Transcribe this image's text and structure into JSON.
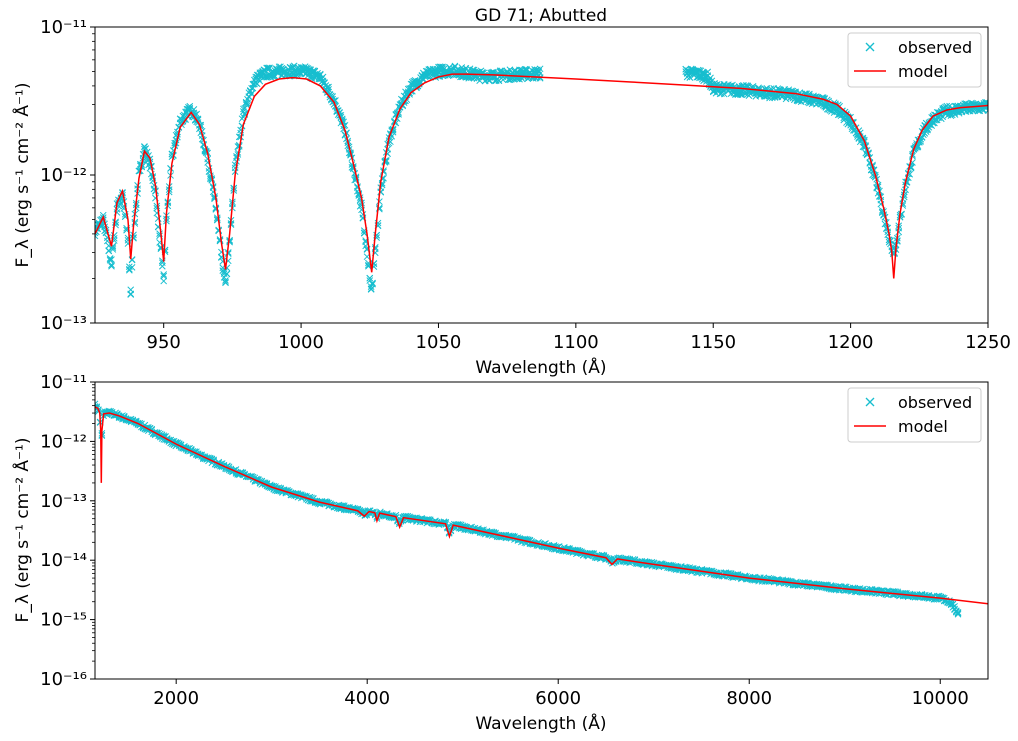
{
  "chart_data": [
    {
      "type": "line",
      "title": "GD 71; Abutted",
      "xlabel": "Wavelength (Å)",
      "ylabel": "F_λ (erg s⁻¹ cm⁻² Å⁻¹)",
      "xlim": [
        925,
        1250
      ],
      "ylim": [
        1e-13,
        1e-11
      ],
      "yscale": "log",
      "xticks": [
        950,
        1000,
        1050,
        1100,
        1150,
        1200,
        1250
      ],
      "yticks": [
        {
          "value": 1e-13,
          "label": "10⁻¹³"
        },
        {
          "value": 1e-12,
          "label": "10⁻¹²"
        },
        {
          "value": 1e-11,
          "label": "10⁻¹¹"
        }
      ],
      "legend": {
        "position": "top-right",
        "entries": [
          "observed",
          "model"
        ]
      },
      "series": [
        {
          "name": "model",
          "style": "line",
          "color": "#ff0000",
          "x": [
            925,
            928,
            931,
            933,
            935,
            937,
            938,
            939,
            941,
            943,
            945,
            947,
            949,
            950,
            951,
            953,
            956,
            960,
            963,
            966,
            969,
            971,
            972.5,
            974,
            976,
            979,
            983,
            987,
            992,
            997,
            1002,
            1007,
            1012,
            1016,
            1019,
            1022,
            1024,
            1025.7,
            1027,
            1029,
            1032,
            1036,
            1040,
            1045,
            1050,
            1055,
            1060,
            1070,
            1080,
            1090,
            1100,
            1120,
            1140,
            1160,
            1180,
            1190,
            1195,
            1200,
            1205,
            1209,
            1212,
            1214,
            1215,
            1215.7,
            1216.5,
            1218,
            1220,
            1223,
            1226,
            1230,
            1235,
            1240,
            1245,
            1250
          ],
          "y": [
            4e-13,
            5.2e-13,
            3.3e-13,
            6.5e-13,
            7.8e-13,
            5e-13,
            2.7e-13,
            4.5e-13,
            9.5e-13,
            1.45e-12,
            1.3e-12,
            8.5e-13,
            4e-13,
            2.6e-13,
            5.5e-13,
            1.2e-12,
            2.1e-12,
            2.65e-12,
            2.2e-12,
            1.4e-12,
            7e-13,
            3.5e-13,
            2.3e-13,
            4e-13,
            1e-12,
            2.2e-12,
            3.4e-12,
            4.1e-12,
            4.45e-12,
            4.55e-12,
            4.45e-12,
            4e-12,
            3.1e-12,
            2e-12,
            1.2e-12,
            7e-13,
            4e-13,
            2.2e-13,
            4e-13,
            9e-13,
            1.8e-12,
            2.8e-12,
            3.6e-12,
            4.2e-12,
            4.6e-12,
            4.8e-12,
            4.8e-12,
            4.75e-12,
            4.65e-12,
            4.55e-12,
            4.45e-12,
            4.25e-12,
            4.05e-12,
            3.85e-12,
            3.55e-12,
            3.25e-12,
            3e-12,
            2.5e-12,
            1.7e-12,
            1e-12,
            6e-13,
            4e-13,
            3e-13,
            2e-13,
            3.2e-13,
            5.5e-13,
            9e-13,
            1.5e-12,
            2e-12,
            2.5e-12,
            2.75e-12,
            2.85e-12,
            2.9e-12,
            2.95e-12
          ]
        },
        {
          "name": "observed",
          "style": "x-markers",
          "color": "#17becf",
          "x": [
            925,
            928,
            931,
            933,
            935,
            937,
            938,
            939,
            941,
            943,
            945,
            947,
            949,
            950,
            951,
            953,
            956,
            960,
            963,
            966,
            969,
            971,
            972.5,
            974,
            976,
            979,
            983,
            987,
            992,
            997,
            1002,
            1007,
            1012,
            1016,
            1019,
            1022,
            1024,
            1025.7,
            1027,
            1029,
            1032,
            1036,
            1040,
            1045,
            1050,
            1055,
            1060,
            1065,
            1070,
            1075,
            1080,
            1087,
            1140,
            1145,
            1148,
            1150,
            1160,
            1180,
            1190,
            1195,
            1200,
            1205,
            1209,
            1212,
            1214,
            1215,
            1215.7,
            1216.5,
            1218,
            1220,
            1223,
            1226,
            1230,
            1235,
            1240,
            1245,
            1250
          ],
          "y": [
            4.2e-13,
            5e-13,
            2.5e-13,
            6e-13,
            7.5e-13,
            3.5e-13,
            1.6e-13,
            4e-13,
            1e-12,
            1.5e-12,
            1.2e-12,
            7.5e-13,
            3e-13,
            2e-13,
            5e-13,
            1.3e-12,
            2.3e-12,
            2.8e-12,
            2.2e-12,
            1.3e-12,
            6e-13,
            2.8e-13,
            1.8e-13,
            3.5e-13,
            1.1e-12,
            2.6e-12,
            4.3e-12,
            4.9e-12,
            5e-12,
            5.05e-12,
            5e-12,
            4.6e-12,
            3.2e-12,
            2e-12,
            1.1e-12,
            6e-13,
            3e-13,
            1.6e-13,
            3e-13,
            8e-13,
            1.7e-12,
            2.9e-12,
            3.9e-12,
            4.7e-12,
            5e-12,
            5.1e-12,
            4.9e-12,
            4.7e-12,
            4.65e-12,
            4.75e-12,
            4.8e-12,
            4.85e-12,
            4.9e-12,
            4.8e-12,
            4.6e-12,
            3.85e-12,
            3.75e-12,
            3.45e-12,
            3.1e-12,
            2.8e-12,
            2.3e-12,
            1.6e-12,
            9.5e-13,
            5.5e-13,
            3.8e-13,
            3.2e-13,
            3.1e-13,
            3.3e-13,
            5e-13,
            8.5e-13,
            1.4e-12,
            1.9e-12,
            2.4e-12,
            2.7e-12,
            2.8e-12,
            2.85e-12,
            2.9e-12
          ]
        }
      ]
    },
    {
      "type": "line",
      "title": "",
      "xlabel": "Wavelength (Å)",
      "ylabel": "F_λ (erg s⁻¹ cm⁻² Å⁻¹)",
      "xlim": [
        1150,
        10500
      ],
      "ylim": [
        1e-16,
        1e-11
      ],
      "yscale": "log",
      "xticks": [
        2000,
        4000,
        6000,
        8000,
        10000
      ],
      "yticks": [
        {
          "value": 1e-16,
          "label": "10⁻¹⁶"
        },
        {
          "value": 1e-15,
          "label": "10⁻¹⁵"
        },
        {
          "value": 1e-14,
          "label": "10⁻¹⁴"
        },
        {
          "value": 1e-13,
          "label": "10⁻¹³"
        },
        {
          "value": 1e-12,
          "label": "10⁻¹²"
        },
        {
          "value": 1e-11,
          "label": "10⁻¹¹"
        }
      ],
      "legend": {
        "position": "top-right",
        "entries": [
          "observed",
          "model"
        ]
      },
      "series": [
        {
          "name": "model",
          "style": "line",
          "color": "#ff0000",
          "x": [
            1150,
            1180,
            1200,
            1210,
            1216,
            1222,
            1240,
            1300,
            1400,
            1600,
            2000,
            2500,
            3000,
            3500,
            3900,
            3970,
            4020,
            4080,
            4102,
            4130,
            4300,
            4340,
            4380,
            4820,
            4861,
            4900,
            5500,
            6000,
            6500,
            6563,
            6620,
            7000,
            8000,
            9000,
            10000,
            10500
          ],
          "y": [
            3.8e-12,
            3.6e-12,
            3e-12,
            1.5e-12,
            2e-13,
            1.5e-12,
            2.9e-12,
            3e-12,
            2.7e-12,
            2e-12,
            9e-13,
            3.8e-13,
            1.7e-13,
            9.5e-14,
            6.8e-14,
            5.5e-14,
            6.6e-14,
            6.3e-14,
            4.6e-14,
            6.2e-14,
            5.4e-14,
            3.6e-14,
            5.2e-14,
            4.1e-14,
            2.5e-14,
            3.9e-14,
            2.4e-14,
            1.6e-14,
            1.1e-14,
            8.5e-15,
            1.05e-14,
            8.5e-15,
            5e-15,
            3.3e-15,
            2.3e-15,
            1.85e-15
          ]
        },
        {
          "name": "observed",
          "style": "x-markers",
          "color": "#17becf",
          "x": [
            1150,
            1180,
            1200,
            1210,
            1216,
            1222,
            1240,
            1300,
            1400,
            1600,
            2000,
            2500,
            3000,
            3500,
            3900,
            3970,
            4020,
            4080,
            4102,
            4130,
            4300,
            4340,
            4380,
            4820,
            4861,
            4900,
            5500,
            6000,
            6500,
            6563,
            6620,
            7000,
            8000,
            9000,
            9800,
            10000,
            10100,
            10200
          ],
          "y": [
            4e-12,
            3.5e-12,
            2.8e-12,
            1.3e-12,
            3e-13,
            1.3e-12,
            2.9e-12,
            3.05e-12,
            2.7e-12,
            2e-12,
            9e-13,
            3.8e-13,
            1.7e-13,
            9.5e-14,
            6.8e-14,
            6e-14,
            6.5e-14,
            6.2e-14,
            5.2e-14,
            6.1e-14,
            5.4e-14,
            4.2e-14,
            5.2e-14,
            4.1e-14,
            3e-14,
            3.9e-14,
            2.4e-14,
            1.6e-14,
            1.1e-14,
            9.5e-15,
            1.05e-14,
            8.5e-15,
            5e-15,
            3.3e-15,
            2.5e-15,
            2.3e-15,
            2e-15,
            1.2e-15
          ]
        }
      ]
    }
  ]
}
